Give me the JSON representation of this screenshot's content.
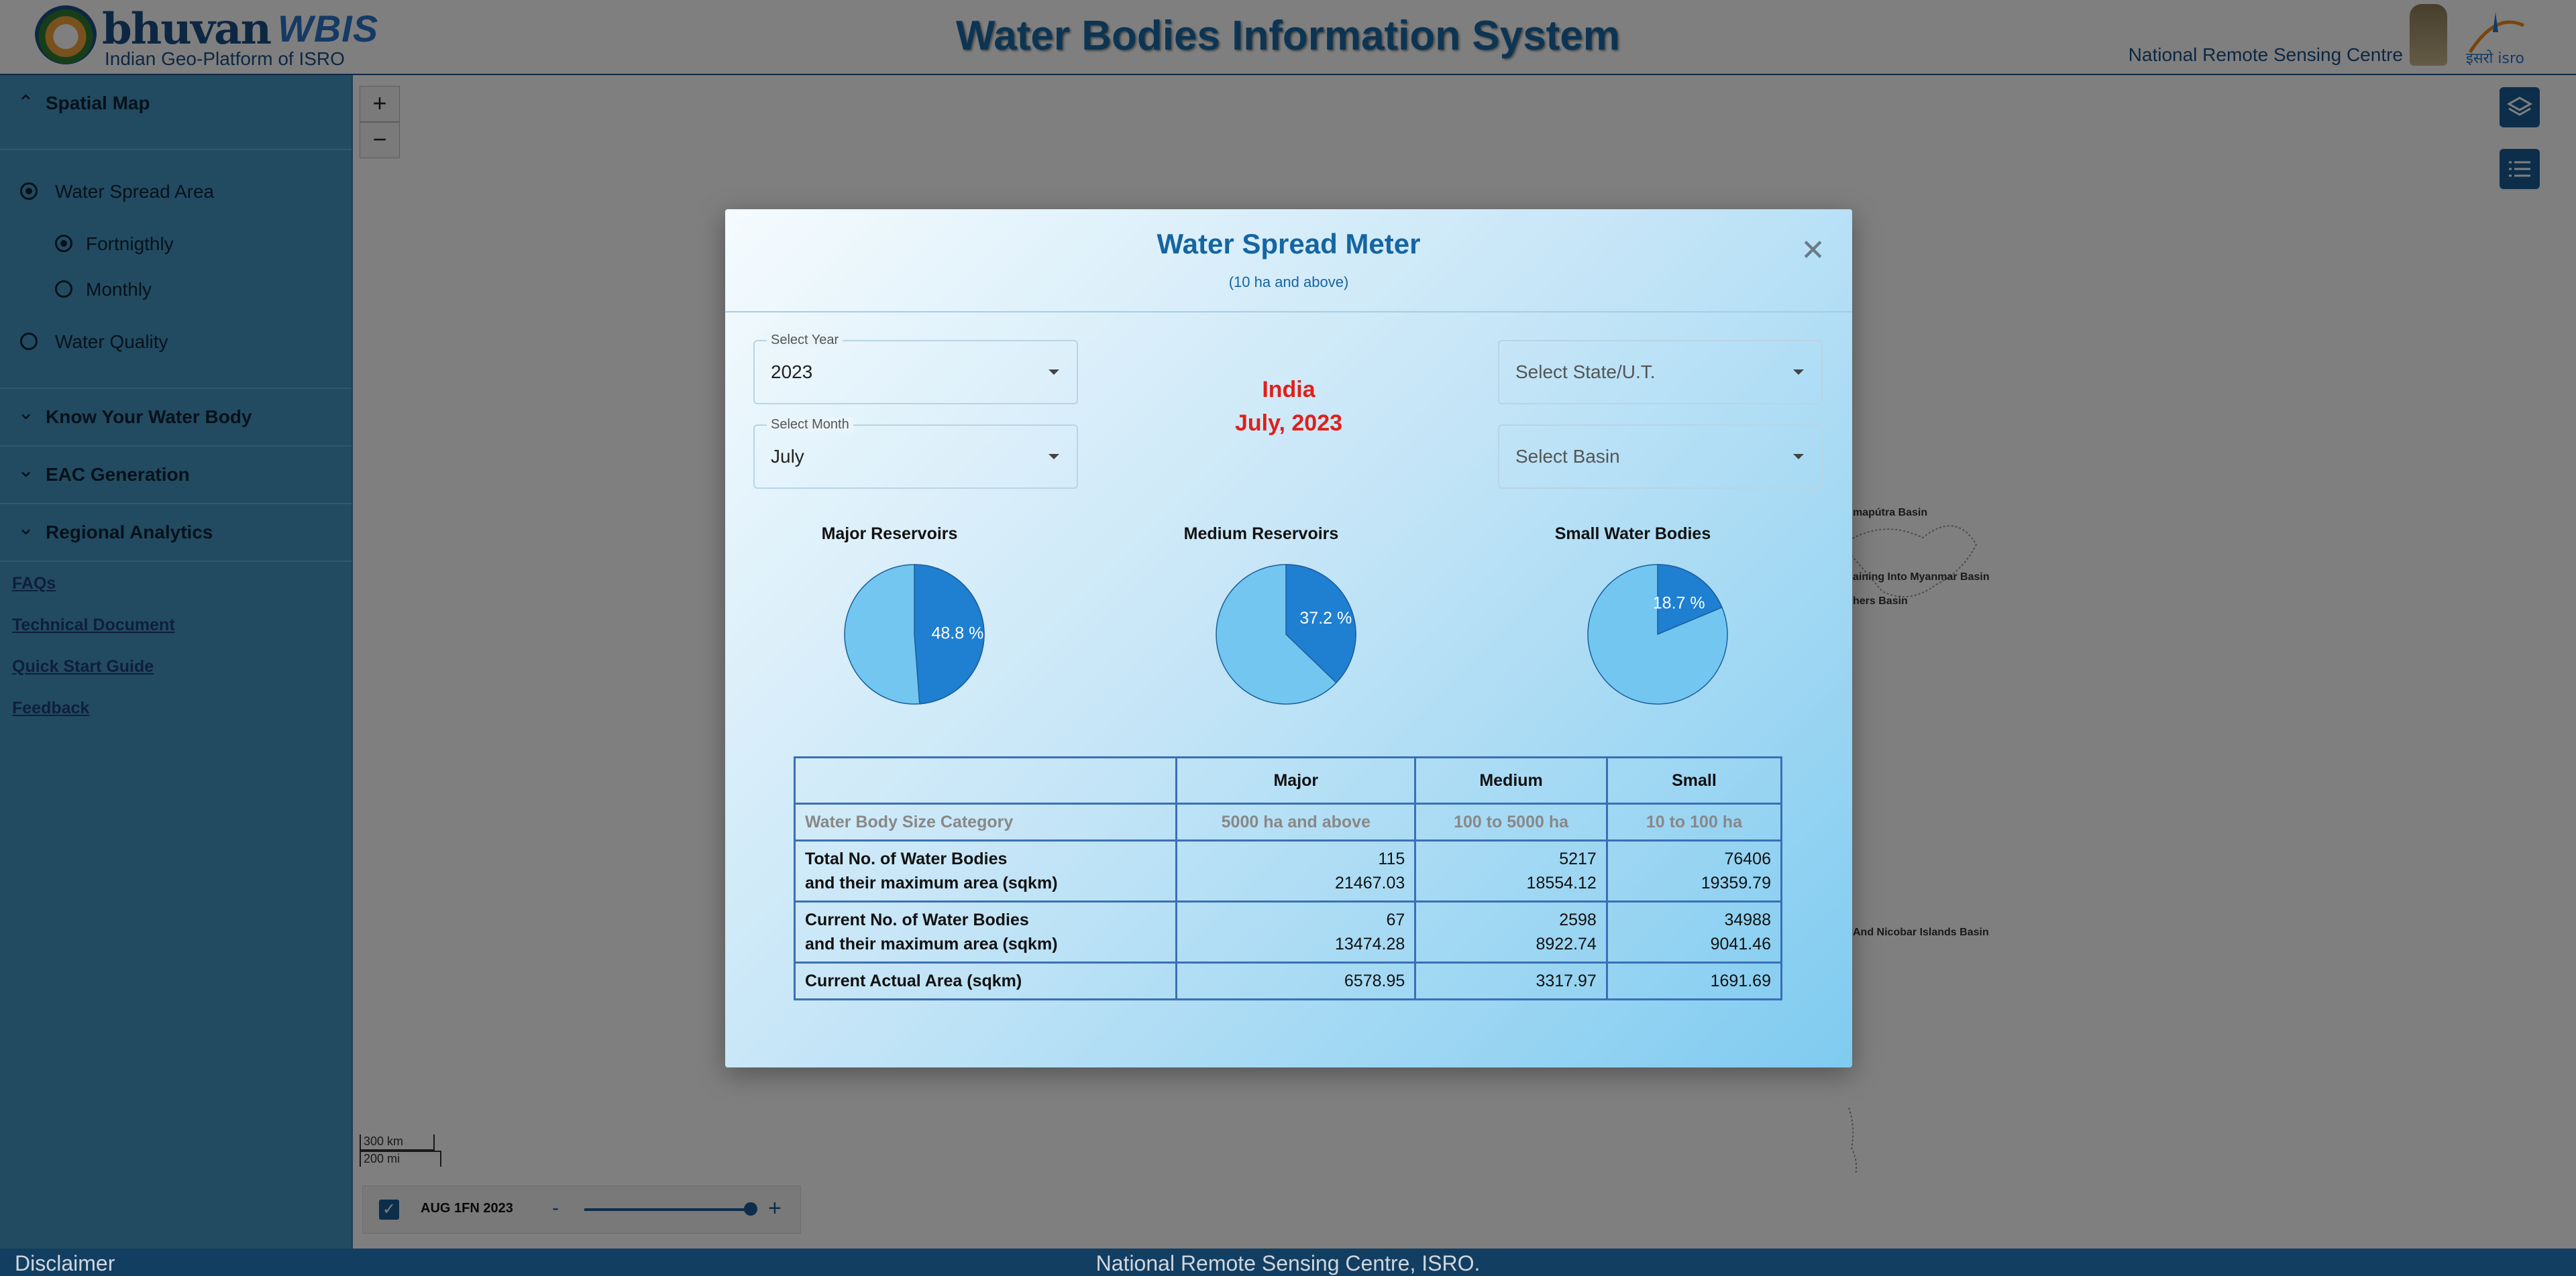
{
  "header": {
    "brand": "bhuvan",
    "brand_product": "WBIS",
    "brand_tagline": "Indian Geo-Platform of ISRO",
    "title": "Water Bodies Information System",
    "org": "National Remote Sensing Centre"
  },
  "sidebar": {
    "spatial_map": {
      "label": "Spatial Map",
      "options": [
        {
          "label": "Water Spread Area",
          "selected": true
        },
        {
          "label": "Fortnigthly",
          "selected": true
        },
        {
          "label": "Monthly",
          "selected": false
        },
        {
          "label": "Water Quality",
          "selected": false
        }
      ]
    },
    "sections": [
      {
        "label": "Know Your Water Body"
      },
      {
        "label": "EAC Generation"
      },
      {
        "label": "Regional Analytics"
      }
    ],
    "links": [
      "FAQs",
      "Technical Document",
      "Quick Start Guide",
      "Feedback"
    ]
  },
  "map": {
    "zoom_in": "+",
    "zoom_out": "−",
    "labels": [
      "mapútra Basin",
      "aining Into Myanmar Basin",
      "hers Basin",
      "And Nicobar Islands Basin"
    ],
    "scale": {
      "km": "300 km",
      "mi": "200 mi"
    },
    "timebar": {
      "label": "AUG 1FN 2023",
      "minus": "-",
      "plus": "+",
      "position_fraction": 1.0
    }
  },
  "modal": {
    "title": "Water Spread Meter",
    "subtitle": "(10 ha and above)",
    "year": {
      "label": "Select Year",
      "value": "2023"
    },
    "month": {
      "label": "Select Month",
      "value": "July"
    },
    "state": {
      "placeholder": "Select State/U.T."
    },
    "basin": {
      "placeholder": "Select Basin"
    },
    "region": "India",
    "period": "July, 2023",
    "pies": [
      {
        "title": "Major Reservoirs",
        "label": "48.8 %",
        "value": 48.8
      },
      {
        "title": "Medium Reservoirs",
        "label": "37.2 %",
        "value": 37.2
      },
      {
        "title": "Small Water Bodies",
        "label": "18.7 %",
        "value": 18.7
      }
    ],
    "pie_colors": {
      "filled": "#1f7fd1",
      "rest": "#72c6f0",
      "stroke": "#1c5e9a"
    },
    "table": {
      "headers": [
        "",
        "Major",
        "Medium",
        "Small"
      ],
      "size_row": {
        "label": "Water Body Size Category",
        "values": [
          "5000 ha and above",
          "100 to 5000 ha",
          "10 to 100 ha"
        ]
      },
      "total_row": {
        "label1": "Total No. of Water Bodies",
        "label2": "and their maximum area (sqkm)",
        "counts": [
          "115",
          "5217",
          "76406"
        ],
        "areas": [
          "21467.03",
          "18554.12",
          "19359.79"
        ]
      },
      "current_row": {
        "label1": "Current No. of Water Bodies",
        "label2": "and their maximum area (sqkm)",
        "counts": [
          "67",
          "2598",
          "34988"
        ],
        "areas": [
          "13474.28",
          "8922.74",
          "9041.46"
        ]
      },
      "actual_row": {
        "label": "Current Actual Area (sqkm)",
        "values": [
          "6578.95",
          "3317.97",
          "1691.69"
        ]
      }
    }
  },
  "footer": {
    "disclaimer": "Disclaimer",
    "center": "National Remote Sensing Centre, ISRO."
  }
}
